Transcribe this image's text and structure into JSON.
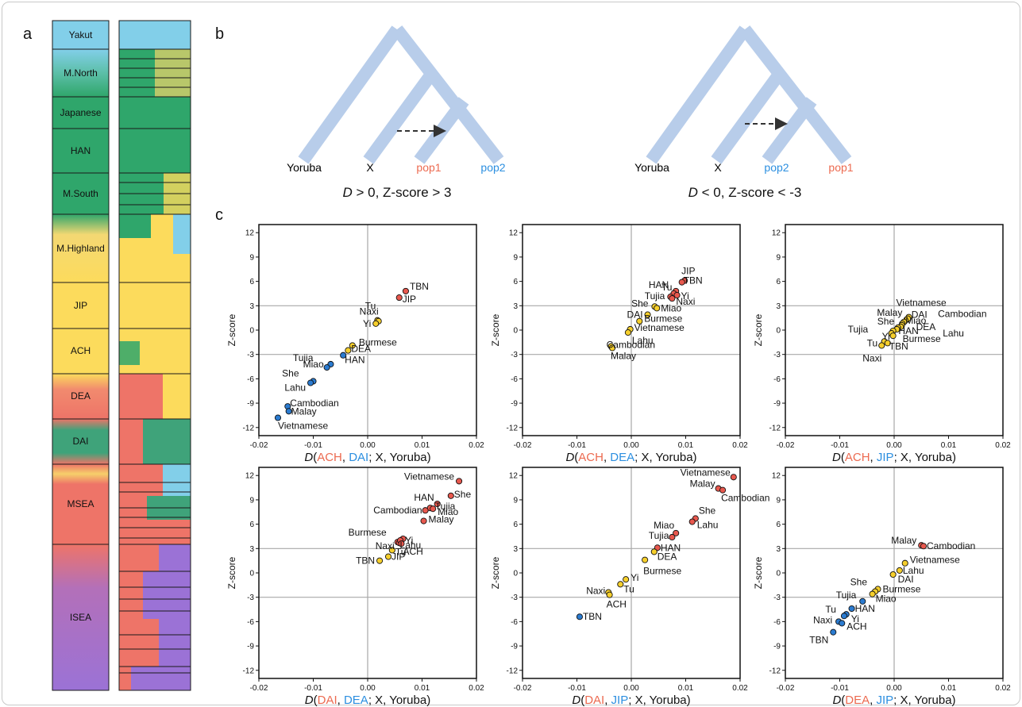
{
  "panel_labels": {
    "a": "a",
    "b": "b",
    "c": "c"
  },
  "colors": {
    "red": "#e8584e",
    "blue": "#2b7bd0",
    "yellow": "#f6cf2c",
    "tree": "#b8cdea",
    "label_red": "#ec6a50",
    "label_blue": "#2c8fe0",
    "grid": "#a8a8a8",
    "seg_colors": {
      "Yakut": "#82cfe9",
      "M.North": "#3ea87a",
      "Japanese": "#2fa66b",
      "HAN": "#2fa66b",
      "M.South": "#2fa66b",
      "M.Highland": "#f4d873",
      "JIP": "#fcdb5c",
      "ACH": "#fcdb5c",
      "DEA": "#f18a6e",
      "DAI": "#3fa37a",
      "MSEA": "#ee7468",
      "ISEA": "#9b72d6"
    }
  },
  "panel_a": {
    "groups": [
      "Yakut",
      "M.North",
      "Japanese",
      "HAN",
      "M.South",
      "M.Highland",
      "JIP",
      "ACH",
      "DEA",
      "DAI",
      "MSEA",
      "ISEA"
    ]
  },
  "panel_b": {
    "trees": [
      {
        "labels": [
          "Yoruba",
          "X",
          "pop1",
          "pop2"
        ],
        "label_colors": [
          "#111111",
          "#111111",
          "#ec6a50",
          "#2c8fe0"
        ],
        "caption": "D > 0, Z-score > 3"
      },
      {
        "labels": [
          "Yoruba",
          "X",
          "pop2",
          "pop1"
        ],
        "label_colors": [
          "#111111",
          "#111111",
          "#2c8fe0",
          "#ec6a50"
        ],
        "caption": "D < 0, Z-score < -3"
      }
    ]
  },
  "chart_data": [
    {
      "type": "scatter",
      "xlabel_parts": [
        "D(",
        "ACH",
        ", ",
        "DAI",
        "; X, Yoruba)"
      ],
      "ylabel": "Z-score",
      "xlim": [
        -0.02,
        0.02
      ],
      "ylim": [
        -13,
        13
      ],
      "xticks": [
        "-0.02",
        "-0.01",
        "0.00",
        "0.01",
        "0.02"
      ],
      "yticks": [
        "12",
        "9",
        "6",
        "3",
        "0",
        "-3",
        "-6",
        "-9",
        "-12"
      ],
      "points": [
        {
          "label": "TBN",
          "x": 0.007,
          "y": 4.8,
          "color": "red"
        },
        {
          "label": "JIP",
          "x": 0.0058,
          "y": 4.0,
          "color": "red"
        },
        {
          "label": "Tu",
          "x": 0.0018,
          "y": 1.2,
          "color": "yellow"
        },
        {
          "label": "Naxi",
          "x": 0.002,
          "y": 1.1,
          "color": "yellow"
        },
        {
          "label": "Yi",
          "x": 0.0015,
          "y": 0.8,
          "color": "yellow"
        },
        {
          "label": "Burmese",
          "x": -0.0028,
          "y": -1.9,
          "color": "yellow"
        },
        {
          "label": "DEA",
          "x": -0.0036,
          "y": -2.5,
          "color": "yellow"
        },
        {
          "label": "HAN",
          "x": -0.0045,
          "y": -3.1,
          "color": "blue"
        },
        {
          "label": "Tujia",
          "x": -0.0068,
          "y": -4.2,
          "color": "blue"
        },
        {
          "label": "Miao",
          "x": -0.0075,
          "y": -4.6,
          "color": "blue"
        },
        {
          "label": "She",
          "x": -0.01,
          "y": -6.3,
          "color": "blue"
        },
        {
          "label": "Lahu",
          "x": -0.0105,
          "y": -6.5,
          "color": "blue"
        },
        {
          "label": "Cambodian",
          "x": -0.0147,
          "y": -9.4,
          "color": "blue"
        },
        {
          "label": "Malay",
          "x": -0.0145,
          "y": -10.0,
          "color": "blue"
        },
        {
          "label": "Vietnamese",
          "x": -0.0165,
          "y": -10.8,
          "color": "blue"
        }
      ]
    },
    {
      "type": "scatter",
      "xlabel_parts": [
        "D(",
        "ACH",
        ", ",
        "DEA",
        "; X, Yoruba)"
      ],
      "ylabel": "Z-score",
      "xlim": [
        -0.02,
        0.02
      ],
      "ylim": [
        -13,
        13
      ],
      "xticks": [
        "-0.02",
        "-0.01",
        "0.00",
        "0.01",
        "0.02"
      ],
      "yticks": [
        "12",
        "9",
        "6",
        "3",
        "0",
        "-3",
        "-6",
        "-9",
        "-12"
      ],
      "points": [
        {
          "label": "JIP",
          "x": 0.0098,
          "y": 6.1,
          "color": "red"
        },
        {
          "label": "TBN",
          "x": 0.0093,
          "y": 5.9,
          "color": "red"
        },
        {
          "label": "HAN",
          "x": 0.0082,
          "y": 4.8,
          "color": "red"
        },
        {
          "label": "Tu",
          "x": 0.0078,
          "y": 4.5,
          "color": "red"
        },
        {
          "label": "Yi",
          "x": 0.0084,
          "y": 4.3,
          "color": "red"
        },
        {
          "label": "Tujia",
          "x": 0.0072,
          "y": 4.1,
          "color": "red"
        },
        {
          "label": "Naxi",
          "x": 0.0075,
          "y": 3.9,
          "color": "red"
        },
        {
          "label": "She",
          "x": 0.0043,
          "y": 2.9,
          "color": "yellow"
        },
        {
          "label": "Miao",
          "x": 0.0047,
          "y": 2.7,
          "color": "yellow"
        },
        {
          "label": "DAI",
          "x": 0.003,
          "y": 1.9,
          "color": "yellow"
        },
        {
          "label": "Burmese",
          "x": 0.0015,
          "y": 1.1,
          "color": "yellow"
        },
        {
          "label": "Vietnamese",
          "x": -0.0002,
          "y": 0.1,
          "color": "yellow"
        },
        {
          "label": "Lahu",
          "x": -0.0006,
          "y": -0.3,
          "color": "yellow"
        },
        {
          "label": "Cambodian",
          "x": -0.0037,
          "y": -2.0,
          "color": "yellow"
        },
        {
          "label": "Malay",
          "x": -0.0035,
          "y": -2.2,
          "color": "yellow"
        }
      ]
    },
    {
      "type": "scatter",
      "xlabel_parts": [
        "D(",
        "ACH",
        ", ",
        "JIP",
        "; X, Yoruba)"
      ],
      "ylabel": "Z-score",
      "xlim": [
        -0.02,
        0.02
      ],
      "ylim": [
        -13,
        13
      ],
      "xticks": [
        "-0.02",
        "-0.01",
        "0.00",
        "0.01",
        "0.02"
      ],
      "yticks": [
        "12",
        "9",
        "6",
        "3",
        "0",
        "-3",
        "-6",
        "-9",
        "-12"
      ],
      "points": [
        {
          "label": "Vietnamese",
          "x": 0.0027,
          "y": 1.6,
          "color": "yellow"
        },
        {
          "label": "DAI",
          "x": 0.0023,
          "y": 1.3,
          "color": "yellow"
        },
        {
          "label": "Cambodian",
          "x": 0.0025,
          "y": 1.4,
          "color": "yellow"
        },
        {
          "label": "Malay",
          "x": 0.0018,
          "y": 1.0,
          "color": "yellow"
        },
        {
          "label": "Miao",
          "x": 0.0015,
          "y": 0.8,
          "color": "yellow"
        },
        {
          "label": "DEA",
          "x": 0.0014,
          "y": 0.6,
          "color": "yellow"
        },
        {
          "label": "Lahu",
          "x": 0.0012,
          "y": 0.4,
          "color": "yellow"
        },
        {
          "label": "She",
          "x": 0.0007,
          "y": 0.3,
          "color": "yellow"
        },
        {
          "label": "HAN",
          "x": 0.0005,
          "y": 0.1,
          "color": "yellow"
        },
        {
          "label": "Tujia",
          "x": -0.0002,
          "y": -0.1,
          "color": "yellow"
        },
        {
          "label": "Yi",
          "x": -0.0005,
          "y": -0.4,
          "color": "yellow"
        },
        {
          "label": "Burmese",
          "x": -0.0002,
          "y": -0.7,
          "color": "yellow"
        },
        {
          "label": "Tu",
          "x": -0.0018,
          "y": -1.4,
          "color": "yellow"
        },
        {
          "label": "TBN",
          "x": -0.0012,
          "y": -1.6,
          "color": "yellow"
        },
        {
          "label": "Naxi",
          "x": -0.0023,
          "y": -1.9,
          "color": "yellow"
        }
      ]
    },
    {
      "type": "scatter",
      "xlabel_parts": [
        "D(",
        "DAI",
        ", ",
        "DEA",
        "; X, Yoruba)"
      ],
      "ylabel": "Z-score",
      "xlim": [
        -0.02,
        0.02
      ],
      "ylim": [
        -13,
        13
      ],
      "xticks": [
        "-0.02",
        "-0.01",
        "0.00",
        "0.01",
        "0.02"
      ],
      "yticks": [
        "12",
        "9",
        "6",
        "3",
        "0",
        "-3",
        "-6",
        "-9",
        "-12"
      ],
      "points": [
        {
          "label": "Vietnamese",
          "x": 0.0168,
          "y": 11.3,
          "color": "red"
        },
        {
          "label": "She",
          "x": 0.0153,
          "y": 9.5,
          "color": "red"
        },
        {
          "label": "HAN",
          "x": 0.0128,
          "y": 8.5,
          "color": "red"
        },
        {
          "label": "Tujia",
          "x": 0.0115,
          "y": 8.0,
          "color": "red"
        },
        {
          "label": "Cambodian",
          "x": 0.0106,
          "y": 7.7,
          "color": "red"
        },
        {
          "label": "Miao",
          "x": 0.012,
          "y": 7.9,
          "color": "red"
        },
        {
          "label": "Malay",
          "x": 0.0103,
          "y": 6.4,
          "color": "red"
        },
        {
          "label": "Lahu",
          "x": 0.0065,
          "y": 4.2,
          "color": "red"
        },
        {
          "label": "Burmese",
          "x": 0.0055,
          "y": 3.8,
          "color": "red"
        },
        {
          "label": "Naxi",
          "x": 0.0058,
          "y": 3.7,
          "color": "red"
        },
        {
          "label": "Yi",
          "x": 0.006,
          "y": 4.0,
          "color": "red"
        },
        {
          "label": "Tu",
          "x": 0.0045,
          "y": 2.8,
          "color": "yellow"
        },
        {
          "label": "ACH",
          "x": 0.0062,
          "y": 3.6,
          "color": "red"
        },
        {
          "label": "JIP",
          "x": 0.0038,
          "y": 2.0,
          "color": "yellow"
        },
        {
          "label": "TBN",
          "x": 0.0022,
          "y": 1.5,
          "color": "yellow"
        }
      ]
    },
    {
      "type": "scatter",
      "xlabel_parts": [
        "D(",
        "DAI",
        ", ",
        "JIP",
        "; X, Yoruba)"
      ],
      "ylabel": "Z-score",
      "xlim": [
        -0.02,
        0.02
      ],
      "ylim": [
        -13,
        13
      ],
      "xticks": [
        "-0.02",
        "-0.01",
        "0.00",
        "0.01",
        "0.02"
      ],
      "yticks": [
        "12",
        "9",
        "6",
        "3",
        "0",
        "-3",
        "-6",
        "-9",
        "-12"
      ],
      "points": [
        {
          "label": "Vietnamese",
          "x": 0.0188,
          "y": 11.8,
          "color": "red"
        },
        {
          "label": "Malay",
          "x": 0.016,
          "y": 10.4,
          "color": "red"
        },
        {
          "label": "Cambodian",
          "x": 0.0168,
          "y": 10.2,
          "color": "red"
        },
        {
          "label": "She",
          "x": 0.0118,
          "y": 6.7,
          "color": "red"
        },
        {
          "label": "Lahu",
          "x": 0.0112,
          "y": 6.3,
          "color": "red"
        },
        {
          "label": "Miao",
          "x": 0.0082,
          "y": 4.9,
          "color": "red"
        },
        {
          "label": "Tujia",
          "x": 0.0075,
          "y": 4.4,
          "color": "red"
        },
        {
          "label": "HAN",
          "x": 0.0048,
          "y": 3.1,
          "color": "red"
        },
        {
          "label": "DEA",
          "x": 0.0042,
          "y": 2.6,
          "color": "yellow"
        },
        {
          "label": "Burmese",
          "x": 0.0025,
          "y": 1.6,
          "color": "yellow"
        },
        {
          "label": "Yi",
          "x": -0.001,
          "y": -0.8,
          "color": "yellow"
        },
        {
          "label": "Tu",
          "x": -0.002,
          "y": -1.4,
          "color": "yellow"
        },
        {
          "label": "Naxi",
          "x": -0.0042,
          "y": -2.4,
          "color": "yellow"
        },
        {
          "label": "ACH",
          "x": -0.004,
          "y": -2.7,
          "color": "yellow"
        },
        {
          "label": "TBN",
          "x": -0.0095,
          "y": -5.4,
          "color": "blue"
        }
      ]
    },
    {
      "type": "scatter",
      "xlabel_parts": [
        "D(",
        "DEA",
        ", ",
        "JIP",
        "; X, Yoruba)"
      ],
      "ylabel": "Z-score",
      "xlim": [
        -0.02,
        0.02
      ],
      "ylim": [
        -13,
        13
      ],
      "xticks": [
        "-0.02",
        "-0.01",
        "0.00",
        "0.01",
        "0.02"
      ],
      "yticks": [
        "12",
        "9",
        "6",
        "3",
        "0",
        "-3",
        "-6",
        "-9",
        "-12"
      ],
      "points": [
        {
          "label": "Malay",
          "x": 0.005,
          "y": 3.4,
          "color": "red"
        },
        {
          "label": "Cambodian",
          "x": 0.0054,
          "y": 3.3,
          "color": "red"
        },
        {
          "label": "Vietnamese",
          "x": 0.002,
          "y": 1.2,
          "color": "yellow"
        },
        {
          "label": "Lahu",
          "x": 0.001,
          "y": 0.3,
          "color": "yellow"
        },
        {
          "label": "DAI",
          "x": -0.0002,
          "y": -0.2,
          "color": "yellow"
        },
        {
          "label": "Burmese",
          "x": -0.003,
          "y": -2.0,
          "color": "yellow"
        },
        {
          "label": "She",
          "x": -0.0035,
          "y": -2.3,
          "color": "yellow"
        },
        {
          "label": "Miao",
          "x": -0.004,
          "y": -2.6,
          "color": "yellow"
        },
        {
          "label": "Tujia",
          "x": -0.0058,
          "y": -3.5,
          "color": "blue"
        },
        {
          "label": "HAN",
          "x": -0.0078,
          "y": -4.4,
          "color": "blue"
        },
        {
          "label": "Yi",
          "x": -0.0088,
          "y": -5.1,
          "color": "blue"
        },
        {
          "label": "Tu",
          "x": -0.0092,
          "y": -5.3,
          "color": "blue"
        },
        {
          "label": "Naxi",
          "x": -0.0102,
          "y": -6.0,
          "color": "blue"
        },
        {
          "label": "ACH",
          "x": -0.0096,
          "y": -6.2,
          "color": "blue"
        },
        {
          "label": "TBN",
          "x": -0.0112,
          "y": -7.3,
          "color": "blue"
        }
      ]
    }
  ]
}
